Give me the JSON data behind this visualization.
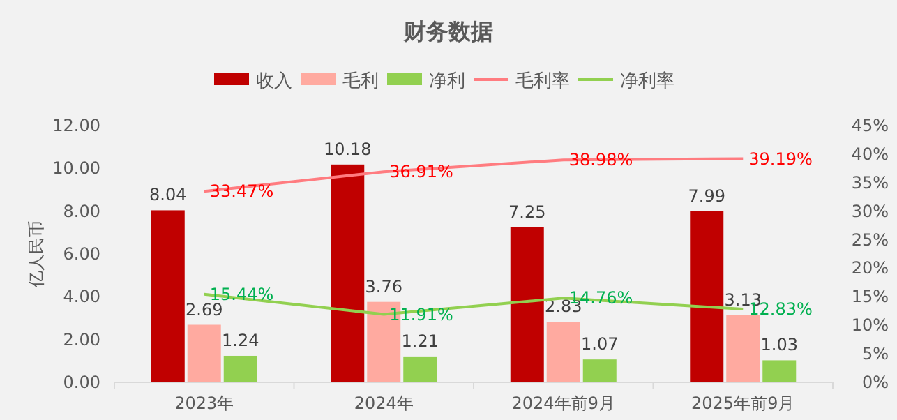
{
  "chart_data": {
    "type": "bar",
    "title": "财务数据",
    "ylabel": "亿人民币",
    "categories": [
      "2023年",
      "2024年",
      "2024年前9月",
      "2025年前9月"
    ],
    "series": [
      {
        "name": "收入",
        "color": "#c00000",
        "values": [
          8.04,
          10.18,
          7.25,
          7.99
        ],
        "value_labels": [
          "8.04",
          "10.18",
          "7.25",
          "7.99"
        ]
      },
      {
        "name": "毛利",
        "color": "#ffaaa0",
        "values": [
          2.69,
          3.76,
          2.83,
          3.13
        ],
        "value_labels": [
          "2.69",
          "3.76",
          "2.83",
          "3.13"
        ]
      },
      {
        "name": "净利",
        "color": "#92d050",
        "values": [
          1.24,
          1.21,
          1.07,
          1.03
        ],
        "value_labels": [
          "1.24",
          "1.21",
          "1.07",
          "1.03"
        ]
      },
      {
        "name": "毛利率",
        "type": "line",
        "axis": "y2",
        "color": "#ff7c80",
        "values": [
          33.47,
          36.91,
          38.98,
          39.19
        ],
        "value_labels": [
          "33.47%",
          "36.91%",
          "38.98%",
          "39.19%"
        ]
      },
      {
        "name": "净利率",
        "type": "line",
        "axis": "y2",
        "color": "#92d050",
        "values": [
          15.44,
          11.91,
          14.76,
          12.83
        ],
        "value_labels": [
          "15.44%",
          "11.91%",
          "14.76%",
          "12.83%"
        ]
      }
    ],
    "ylim": [
      0,
      12
    ],
    "yticks": [
      {
        "value": 0,
        "label": "0.00"
      },
      {
        "value": 2,
        "label": "2.00"
      },
      {
        "value": 4,
        "label": "4.00"
      },
      {
        "value": 6,
        "label": "6.00"
      },
      {
        "value": 8,
        "label": "8.00"
      },
      {
        "value": 10,
        "label": "10.00"
      },
      {
        "value": 12,
        "label": "12.00"
      }
    ],
    "y2lim": [
      0,
      45
    ],
    "y2ticks": [
      {
        "value": 0,
        "label": "0%"
      },
      {
        "value": 5,
        "label": "5%"
      },
      {
        "value": 10,
        "label": "10%"
      },
      {
        "value": 15,
        "label": "15%"
      },
      {
        "value": 20,
        "label": "20%"
      },
      {
        "value": 25,
        "label": "25%"
      },
      {
        "value": 30,
        "label": "30%"
      },
      {
        "value": 35,
        "label": "35%"
      },
      {
        "value": 40,
        "label": "40%"
      },
      {
        "value": 45,
        "label": "45%"
      }
    ],
    "legend": "top",
    "grid": false,
    "marker": "none"
  }
}
